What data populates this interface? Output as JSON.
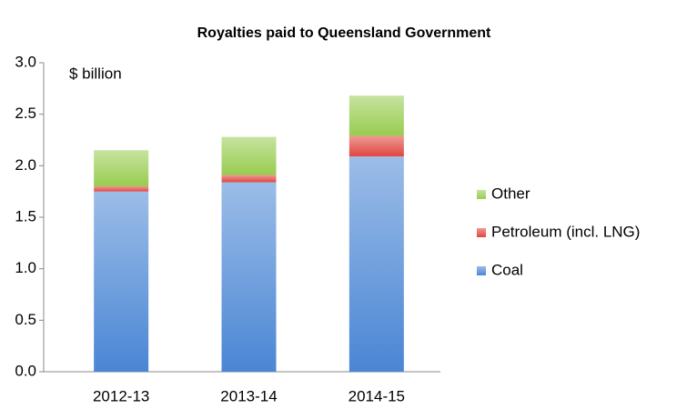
{
  "chart_data": {
    "type": "stacked_bar",
    "title": "Royalties paid to Queensland Government",
    "annotation": "$ billion",
    "categories": [
      "2012-13",
      "2013-14",
      "2014-15"
    ],
    "series": [
      {
        "name": "Coal",
        "color": "#4a86d4",
        "values": [
          1.75,
          1.84,
          2.09
        ]
      },
      {
        "name": "Petroleum (incl.  LNG)",
        "color": "#e0463f",
        "values": [
          0.05,
          0.07,
          0.2
        ]
      },
      {
        "name": "Other",
        "color": "#98cc50",
        "values": [
          0.35,
          0.37,
          0.39
        ]
      }
    ],
    "ylim": [
      0,
      3
    ],
    "yticks": [
      {
        "value": 0,
        "label": "0.0"
      },
      0.5,
      {
        "value": 1,
        "label": "1.0"
      },
      1.5,
      {
        "value": 2,
        "label": "2.0"
      },
      2.5,
      {
        "value": 3,
        "label": "3.0"
      }
    ],
    "grid": false,
    "legend": "right"
  }
}
